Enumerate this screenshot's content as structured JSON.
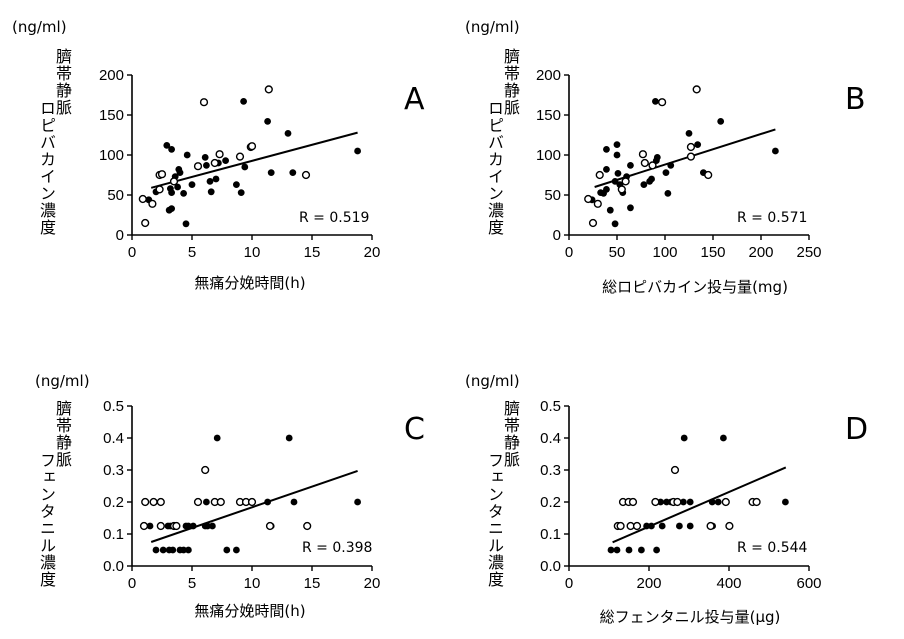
{
  "chart_data": [
    {
      "panel": "A",
      "type": "scatter",
      "unit": "(ng/ml)",
      "ylabel_line1": "臍帯静脈",
      "ylabel_line2": "ロピバカイン濃度",
      "xlabel": "無痛分娩時間(h)",
      "xlim": [
        0,
        20
      ],
      "ylim": [
        0,
        200
      ],
      "xticks": [
        0,
        5,
        10,
        15,
        20
      ],
      "yticks": [
        0,
        50,
        100,
        150,
        200
      ],
      "r_label": "R = 0.519",
      "fit_line": [
        [
          1.6,
          59
        ],
        [
          18.8,
          128
        ]
      ],
      "filled": [
        [
          2.9,
          112
        ],
        [
          3.3,
          107
        ],
        [
          4.6,
          100
        ],
        [
          9.3,
          167
        ],
        [
          11.3,
          142
        ],
        [
          13.0,
          127
        ],
        [
          18.8,
          105
        ],
        [
          3.9,
          82
        ],
        [
          4.0,
          78
        ],
        [
          3.6,
          73
        ],
        [
          6.1,
          97
        ],
        [
          6.2,
          87
        ],
        [
          7.2,
          90
        ],
        [
          7.8,
          93
        ],
        [
          9.4,
          85
        ],
        [
          11.6,
          78
        ],
        [
          13.4,
          78
        ],
        [
          5.0,
          63
        ],
        [
          3.8,
          60
        ],
        [
          3.2,
          58
        ],
        [
          3.3,
          53
        ],
        [
          2.0,
          54
        ],
        [
          4.3,
          52
        ],
        [
          6.5,
          67
        ],
        [
          7.0,
          70
        ],
        [
          6.6,
          54
        ],
        [
          8.7,
          63
        ],
        [
          9.1,
          53
        ],
        [
          3.1,
          31
        ],
        [
          3.3,
          33
        ],
        [
          4.5,
          14
        ],
        [
          1.4,
          44
        ]
      ],
      "open": [
        [
          6.0,
          166
        ],
        [
          11.4,
          182
        ],
        [
          2.3,
          75
        ],
        [
          2.5,
          76
        ],
        [
          2.3,
          57
        ],
        [
          3.5,
          67
        ],
        [
          5.5,
          86
        ],
        [
          6.9,
          90
        ],
        [
          7.3,
          101
        ],
        [
          9.0,
          98
        ],
        [
          9.9,
          110
        ],
        [
          10.0,
          111
        ],
        [
          14.5,
          75
        ],
        [
          0.9,
          45
        ],
        [
          1.7,
          39
        ],
        [
          1.1,
          15
        ]
      ]
    },
    {
      "panel": "B",
      "type": "scatter",
      "unit": "(ng/ml)",
      "ylabel_line1": "臍帯静脈",
      "ylabel_line2": "ロピバカイン濃度",
      "xlabel": "総ロピバカイン投与量(mg)",
      "xlim": [
        0,
        250
      ],
      "ylim": [
        0,
        200
      ],
      "xticks": [
        0,
        50,
        100,
        150,
        200,
        250
      ],
      "yticks": [
        0,
        50,
        100,
        150,
        200
      ],
      "r_label": "R = 0.571",
      "fit_line": [
        [
          26.7,
          60
        ],
        [
          215,
          132
        ]
      ],
      "filled": [
        [
          50,
          113
        ],
        [
          39,
          107
        ],
        [
          50,
          100
        ],
        [
          90,
          167
        ],
        [
          158,
          142
        ],
        [
          125,
          127
        ],
        [
          215,
          105
        ],
        [
          39,
          82
        ],
        [
          64,
          87
        ],
        [
          92,
          97
        ],
        [
          91,
          93
        ],
        [
          134,
          113
        ],
        [
          101,
          78
        ],
        [
          106,
          87
        ],
        [
          140,
          78
        ],
        [
          60,
          73
        ],
        [
          51,
          77
        ],
        [
          33,
          53
        ],
        [
          36,
          52
        ],
        [
          39,
          57
        ],
        [
          56,
          53
        ],
        [
          53,
          63
        ],
        [
          48,
          67
        ],
        [
          78,
          63
        ],
        [
          84,
          67
        ],
        [
          86,
          70
        ],
        [
          103,
          52
        ],
        [
          43,
          31
        ],
        [
          64,
          34
        ],
        [
          48,
          14
        ],
        [
          24,
          44
        ]
      ],
      "open": [
        [
          97,
          166
        ],
        [
          133,
          182
        ],
        [
          32,
          75
        ],
        [
          77,
          101
        ],
        [
          79,
          90
        ],
        [
          87,
          87
        ],
        [
          127,
          110
        ],
        [
          127,
          98
        ],
        [
          145,
          75
        ],
        [
          59,
          67
        ],
        [
          55,
          57
        ],
        [
          20,
          45
        ],
        [
          30,
          39
        ],
        [
          25,
          15
        ]
      ]
    },
    {
      "panel": "C",
      "type": "scatter",
      "unit": "(ng/ml)",
      "ylabel_line1": "臍帯静脈",
      "ylabel_line2": "フェンタニル濃度",
      "xlabel": "無痛分娩時間(h)",
      "xlim": [
        0,
        20
      ],
      "ylim": [
        0,
        0.5
      ],
      "xticks": [
        0,
        5,
        10,
        15,
        20
      ],
      "yticks": [
        0.0,
        0.1,
        0.2,
        0.3,
        0.4,
        0.5
      ],
      "r_label": "R = 0.398",
      "fit_line": [
        [
          1.6,
          0.075
        ],
        [
          18.8,
          0.297
        ]
      ],
      "filled": [
        [
          7.1,
          0.4
        ],
        [
          13.1,
          0.4
        ],
        [
          6.2,
          0.2
        ],
        [
          11.3,
          0.2
        ],
        [
          13.5,
          0.2
        ],
        [
          18.8,
          0.2
        ],
        [
          1.5,
          0.125
        ],
        [
          3.0,
          0.125
        ],
        [
          3.2,
          0.125
        ],
        [
          4.5,
          0.125
        ],
        [
          4.7,
          0.125
        ],
        [
          5.1,
          0.125
        ],
        [
          6.1,
          0.125
        ],
        [
          6.3,
          0.125
        ],
        [
          6.7,
          0.125
        ],
        [
          11.6,
          0.125
        ],
        [
          2.0,
          0.05
        ],
        [
          2.6,
          0.05
        ],
        [
          3.1,
          0.05
        ],
        [
          3.4,
          0.05
        ],
        [
          4.0,
          0.05
        ],
        [
          4.3,
          0.05
        ],
        [
          4.7,
          0.05
        ],
        [
          7.9,
          0.05
        ],
        [
          8.7,
          0.05
        ]
      ],
      "open": [
        [
          6.1,
          0.3
        ],
        [
          1.1,
          0.2
        ],
        [
          1.8,
          0.2
        ],
        [
          2.4,
          0.2
        ],
        [
          5.5,
          0.2
        ],
        [
          6.9,
          0.2
        ],
        [
          7.4,
          0.2
        ],
        [
          9.0,
          0.2
        ],
        [
          9.5,
          0.2
        ],
        [
          10.0,
          0.2
        ],
        [
          1.0,
          0.125
        ],
        [
          2.4,
          0.125
        ],
        [
          3.5,
          0.125
        ],
        [
          3.7,
          0.125
        ],
        [
          11.5,
          0.125
        ],
        [
          14.6,
          0.125
        ]
      ]
    },
    {
      "panel": "D",
      "type": "scatter",
      "unit": "(ng/ml)",
      "ylabel_line1": "臍帯静脈",
      "ylabel_line2": "フェンタニル濃度",
      "xlabel": "総フェンタニル投与量(μg)",
      "xlim": [
        0,
        600
      ],
      "ylim": [
        0,
        0.5
      ],
      "xticks": [
        0,
        200,
        400,
        600
      ],
      "yticks": [
        0.0,
        0.1,
        0.2,
        0.3,
        0.4,
        0.5
      ],
      "r_label": "R = 0.544",
      "fit_line": [
        [
          109,
          0.074
        ],
        [
          542,
          0.308
        ]
      ],
      "filled": [
        [
          288,
          0.4
        ],
        [
          386,
          0.4
        ],
        [
          229,
          0.2
        ],
        [
          244,
          0.2
        ],
        [
          255,
          0.2
        ],
        [
          286,
          0.2
        ],
        [
          303,
          0.2
        ],
        [
          358,
          0.2
        ],
        [
          373,
          0.2
        ],
        [
          541,
          0.2
        ],
        [
          194,
          0.125
        ],
        [
          206,
          0.125
        ],
        [
          233,
          0.125
        ],
        [
          276,
          0.125
        ],
        [
          303,
          0.125
        ],
        [
          359,
          0.125
        ],
        [
          105,
          0.05
        ],
        [
          120,
          0.05
        ],
        [
          150,
          0.05
        ],
        [
          181,
          0.05
        ],
        [
          219,
          0.05
        ]
      ],
      "open": [
        [
          265,
          0.3
        ],
        [
          135,
          0.2
        ],
        [
          149,
          0.2
        ],
        [
          160,
          0.2
        ],
        [
          216,
          0.2
        ],
        [
          261,
          0.2
        ],
        [
          271,
          0.2
        ],
        [
          392,
          0.2
        ],
        [
          459,
          0.2
        ],
        [
          469,
          0.2
        ],
        [
          122,
          0.125
        ],
        [
          129,
          0.125
        ],
        [
          154,
          0.125
        ],
        [
          170,
          0.125
        ],
        [
          354,
          0.125
        ],
        [
          401,
          0.125
        ]
      ]
    }
  ]
}
